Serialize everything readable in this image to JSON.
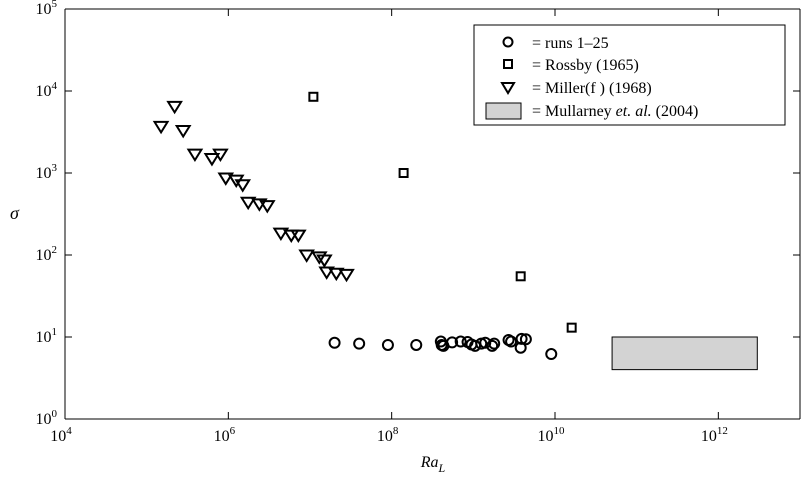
{
  "chart_data": {
    "type": "scatter",
    "xlabel": "Ra",
    "xlabel_sub": "L",
    "ylabel": "σ",
    "x_scale": "log",
    "y_scale": "log",
    "xlim": [
      10000,
      10000000000000.0
    ],
    "ylim": [
      1,
      100000
    ],
    "grid": false,
    "legend_position": "top-right",
    "x_ticks": [
      {
        "value": 10000,
        "base": "10",
        "exp": "4"
      },
      {
        "value": 1000000,
        "base": "10",
        "exp": "6"
      },
      {
        "value": 100000000,
        "base": "10",
        "exp": "8"
      },
      {
        "value": 10000000000,
        "base": "10",
        "exp": "10"
      },
      {
        "value": 1000000000000,
        "base": "10",
        "exp": "12"
      }
    ],
    "y_ticks": [
      {
        "value": 1,
        "base": "10",
        "exp": "0"
      },
      {
        "value": 10,
        "base": "10",
        "exp": "1"
      },
      {
        "value": 100,
        "base": "10",
        "exp": "2"
      },
      {
        "value": 1000,
        "base": "10",
        "exp": "3"
      },
      {
        "value": 10000,
        "base": "10",
        "exp": "4"
      },
      {
        "value": 100000,
        "base": "10",
        "exp": "5"
      }
    ],
    "legend": [
      {
        "marker": "circle",
        "text": "= runs 1–25"
      },
      {
        "marker": "square",
        "text": "= Rossby (1965)"
      },
      {
        "marker": "triangle",
        "text": "= Miller(f ) (1968)"
      },
      {
        "marker": "box",
        "text_before": "= Mullarney ",
        "text_italic": "et. al.",
        "text_after": " (2004)"
      }
    ],
    "series": [
      {
        "name": "runs 1–25",
        "marker": "circle",
        "points": [
          [
            20000000,
            8.5
          ],
          [
            40000000,
            8.3
          ],
          [
            90000000,
            8.0
          ],
          [
            200000000,
            8.0
          ],
          [
            400000000,
            8.8
          ],
          [
            410000000,
            8.0
          ],
          [
            430000000,
            7.8
          ],
          [
            550000000,
            8.6
          ],
          [
            700000000,
            8.8
          ],
          [
            850000000,
            8.7
          ],
          [
            950000000,
            8.1
          ],
          [
            1050000000,
            7.8
          ],
          [
            1250000000,
            8.3
          ],
          [
            1400000000,
            8.5
          ],
          [
            1700000000,
            7.8
          ],
          [
            1800000000,
            8.3
          ],
          [
            2700000000,
            9.2
          ],
          [
            2900000000,
            8.8
          ],
          [
            3800000000,
            7.4
          ],
          [
            3900000000,
            9.5
          ],
          [
            4400000000,
            9.4
          ],
          [
            9000000000,
            6.2
          ]
        ]
      },
      {
        "name": "Rossby (1965)",
        "marker": "square",
        "points": [
          [
            11000000,
            8500
          ],
          [
            140000000,
            1000
          ],
          [
            3800000000,
            55
          ],
          [
            16000000000,
            13
          ]
        ]
      },
      {
        "name": "Miller(f ) (1968)",
        "marker": "triangle",
        "points": [
          [
            150000,
            3700
          ],
          [
            220000,
            6500
          ],
          [
            280000,
            3300
          ],
          [
            390000,
            1700
          ],
          [
            630000,
            1500
          ],
          [
            800000,
            1700
          ],
          [
            930000,
            870
          ],
          [
            1250000,
            820
          ],
          [
            1500000,
            720
          ],
          [
            1750000,
            440
          ],
          [
            2400000,
            420
          ],
          [
            3000000,
            400
          ],
          [
            4400000,
            185
          ],
          [
            5900000,
            175
          ],
          [
            7200000,
            175
          ],
          [
            9100000,
            100
          ],
          [
            13000000,
            95
          ],
          [
            15000000,
            87
          ],
          [
            16000000,
            62
          ],
          [
            21000000,
            60
          ],
          [
            28000000,
            58
          ]
        ]
      },
      {
        "name": "Mullarney et. al. (2004)",
        "marker": "box",
        "x_range": [
          50000000000,
          3000000000000
        ],
        "y_range": [
          4,
          10
        ],
        "fill": "#d3d3d3"
      }
    ]
  }
}
